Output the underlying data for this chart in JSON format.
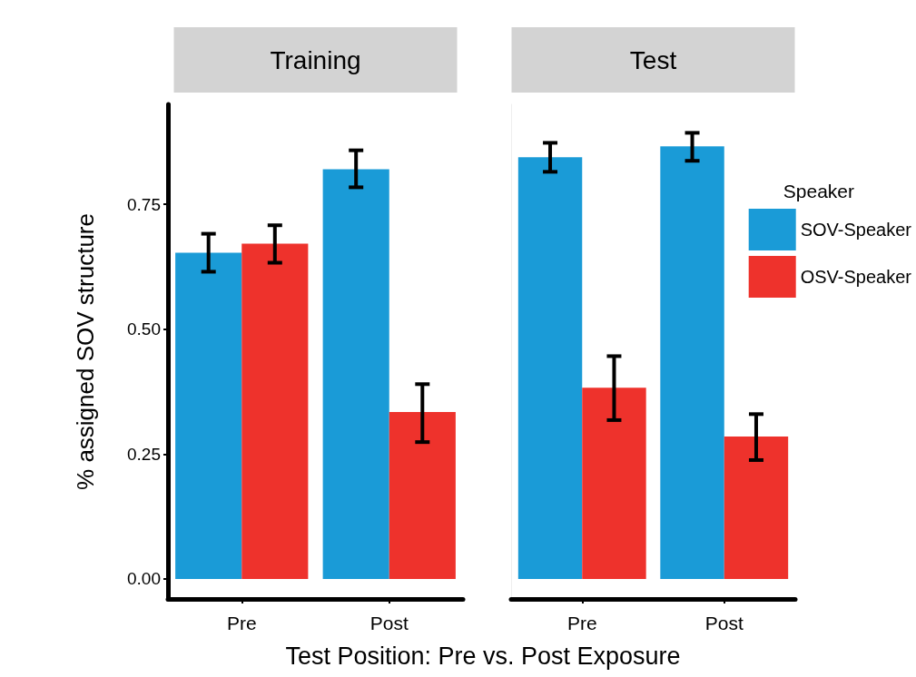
{
  "chart_data": [
    {
      "type": "bar",
      "title": "Training",
      "ylabel": "% assigned SOV structure",
      "xlabel": "Test Position: Pre vs. Post Exposure",
      "categories": [
        "Pre",
        "Post"
      ],
      "ylim": [
        -0.04,
        0.95
      ],
      "yticks": [
        {
          "value": 0,
          "label": "0.00"
        },
        0.25,
        {
          "value": 0.5,
          "label": "0.50"
        },
        0.75
      ],
      "grid": false,
      "legend": false,
      "series": [
        {
          "color": "#1a9bd7",
          "values": [
            0.653,
            0.82
          ],
          "errors": [
            [
              0.615,
              0.691
            ],
            [
              0.784,
              0.858
            ]
          ]
        },
        {
          "color": "#ee322c",
          "values": [
            0.671,
            0.334
          ],
          "errors": [
            [
              0.633,
              0.708
            ],
            [
              0.274,
              0.39
            ]
          ]
        }
      ]
    },
    {
      "type": "bar",
      "title": "Test",
      "legend_title": "Speaker",
      "categories": [
        "Pre",
        "Post"
      ],
      "ylim": [
        -0.04,
        0.95
      ],
      "tick_labels": "x",
      "grid": false,
      "legend": "right",
      "series": [
        {
          "name": "SOV-Speaker",
          "color": "#1a9bd7",
          "values": [
            0.844,
            0.866
          ],
          "errors": [
            [
              0.815,
              0.873
            ],
            [
              0.837,
              0.893
            ]
          ]
        },
        {
          "name": "OSV-Speaker",
          "color": "#ee322c",
          "values": [
            0.383,
            0.285
          ],
          "errors": [
            [
              0.318,
              0.446
            ],
            [
              0.238,
              0.33
            ]
          ]
        }
      ]
    }
  ]
}
